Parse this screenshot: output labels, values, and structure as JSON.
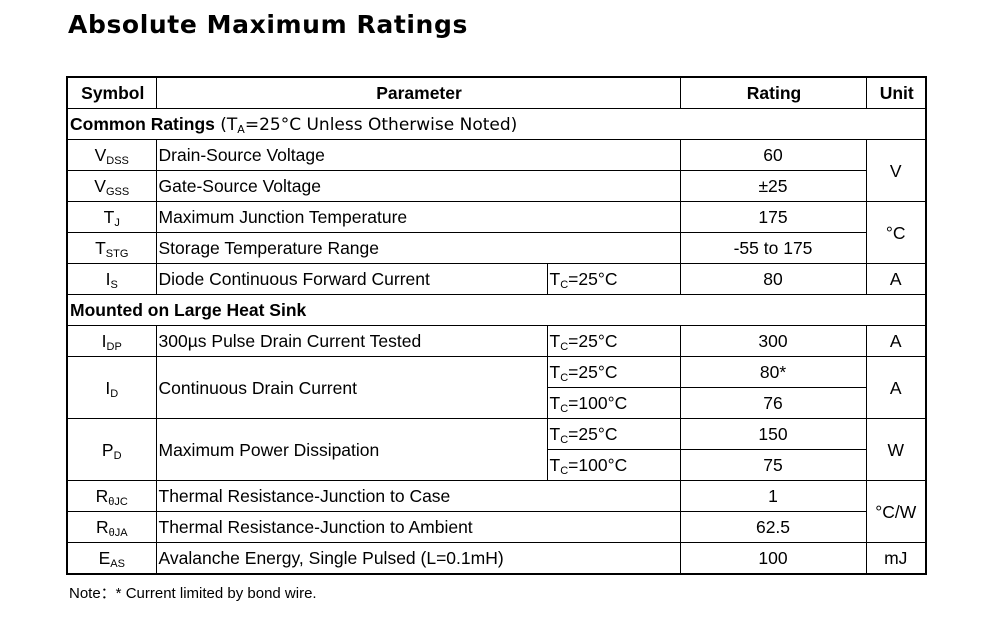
{
  "title": "Absolute Maximum Ratings",
  "headers": {
    "symbol": "Symbol",
    "parameter": "Parameter",
    "rating": "Rating",
    "unit": "Unit"
  },
  "common": {
    "label": "Common Ratings",
    "cond_open": " (T",
    "cond_sub": "A",
    "cond_close": "=25°C Unless Otherwise Noted)",
    "rows": [
      {
        "sym": "V",
        "sub": "DSS",
        "param": "Drain-Source Voltage",
        "rating": "60"
      },
      {
        "sym": "V",
        "sub": "GSS",
        "param": "Gate-Source Voltage",
        "rating": "±25"
      },
      {
        "sym": "T",
        "sub": "J",
        "param": "Maximum Junction Temperature",
        "rating": "175"
      },
      {
        "sym": "T",
        "sub": "STG",
        "param": "Storage Temperature Range",
        "rating": "-55 to 175"
      },
      {
        "sym": "I",
        "sub": "S",
        "param": "Diode Continuous Forward Current",
        "cond_t": "T",
        "cond_sub": "C",
        "cond_val": "=25°C",
        "rating": "80",
        "unit": "A"
      }
    ],
    "unit_v": "V",
    "unit_c": "°C"
  },
  "heatsink": {
    "label": "Mounted on Large Heat Sink",
    "idp": {
      "sym": "I",
      "sub": "DP",
      "param": "300µs Pulse Drain Current Tested",
      "cond_t": "T",
      "cond_sub": "C",
      "cond_val": "=25°C",
      "rating": "300",
      "unit": "A"
    },
    "id": {
      "sym": "I",
      "sub": "D",
      "param": "Continuous Drain Current",
      "cond1_t": "T",
      "cond1_sub": "C",
      "cond1_val": "=25°C",
      "rating1": "80*",
      "cond2_t": "T",
      "cond2_sub": "C",
      "cond2_val": "=100°C",
      "rating2": "76",
      "unit": "A"
    },
    "pd": {
      "sym": "P",
      "sub": "D",
      "param": "Maximum Power Dissipation",
      "cond1_t": "T",
      "cond1_sub": "C",
      "cond1_val": "=25°C",
      "rating1": "150",
      "cond2_t": "T",
      "cond2_sub": "C",
      "cond2_val": "=100°C",
      "rating2": "75",
      "unit": "W"
    },
    "rjc": {
      "sym": "R",
      "sub": "θJC",
      "param": "Thermal Resistance-Junction to Case",
      "rating": "1"
    },
    "rja": {
      "sym": "R",
      "sub": "θJA",
      "param": "Thermal Resistance-Junction to Ambient",
      "rating": "62.5"
    },
    "unit_th": "°C/W",
    "eas": {
      "sym": "E",
      "sub": "AS",
      "param": "Avalanche Energy, Single Pulsed (L=0.1mH)",
      "rating": "100",
      "unit": "mJ"
    }
  },
  "note": "Note：* Current limited by bond wire."
}
